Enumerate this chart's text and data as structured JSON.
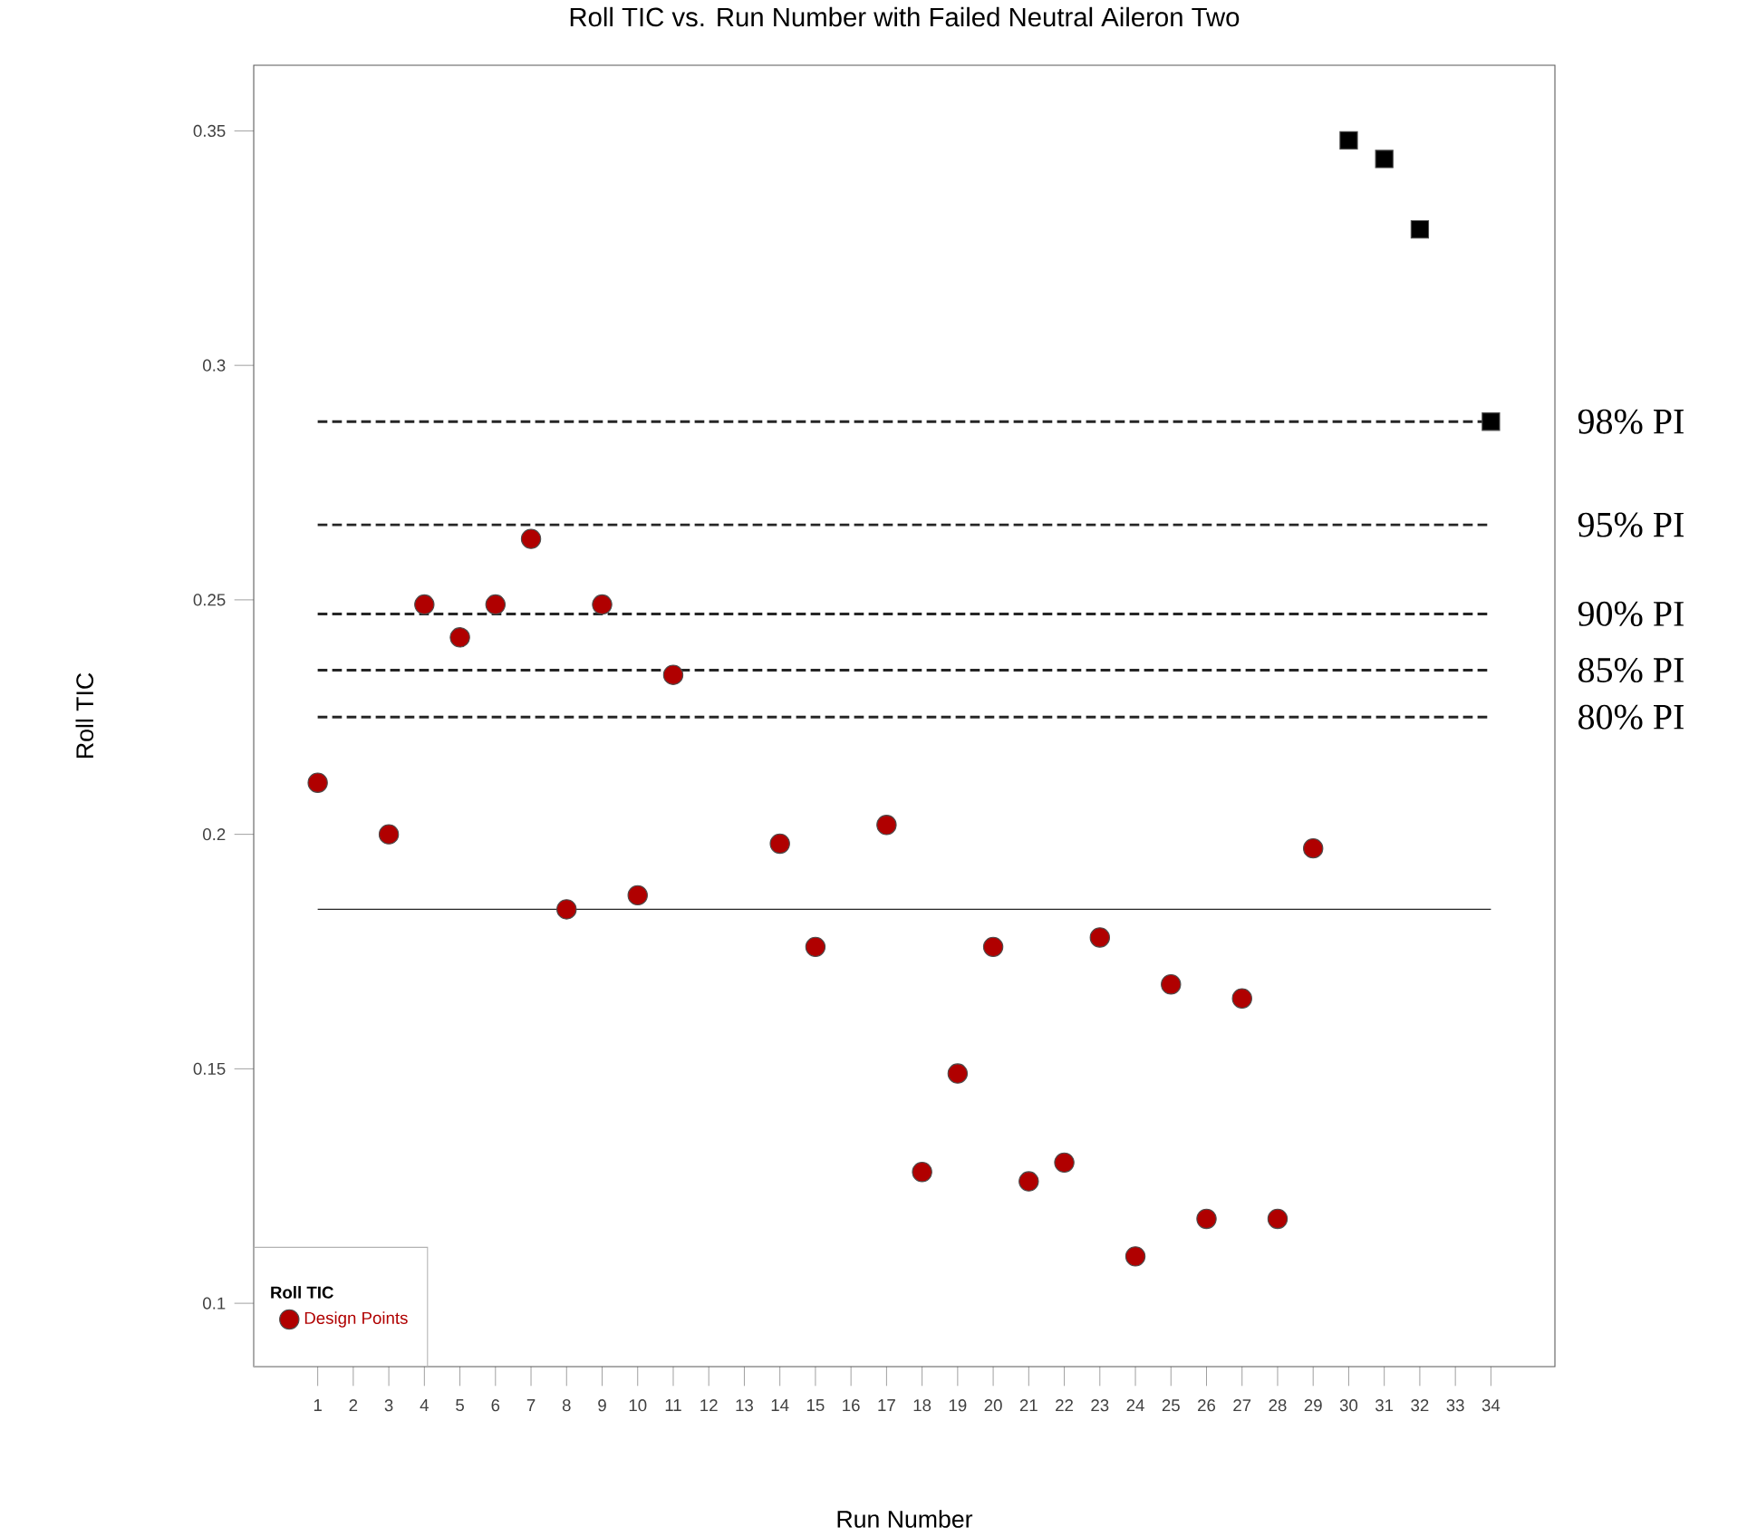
{
  "chart_data": {
    "type": "scatter",
    "title": "Roll TIC vs. Run Number with Failed Neutral Aileron Two",
    "xlabel": "Run Number",
    "ylabel": "Roll TIC",
    "legend_title": "Roll TIC",
    "xlim": [
      -0.8,
      35.8
    ],
    "ylim": [
      0.0865,
      0.364
    ],
    "xticks": [
      1,
      2,
      3,
      4,
      5,
      6,
      7,
      8,
      9,
      10,
      11,
      12,
      13,
      14,
      15,
      16,
      17,
      18,
      19,
      20,
      21,
      22,
      23,
      24,
      25,
      26,
      27,
      28,
      29,
      30,
      31,
      32,
      33,
      34
    ],
    "yticks": [
      0.1,
      0.15,
      0.2,
      0.25,
      0.3,
      0.35
    ],
    "grid": false,
    "legend": "bottom left",
    "series": [
      {
        "name": "Design Points",
        "marker": "circle",
        "color": "#b00000",
        "x": [
          1,
          3,
          4,
          5,
          6,
          7,
          8,
          9,
          10,
          11,
          14,
          15,
          17,
          18,
          19,
          20,
          21,
          22,
          23,
          24,
          25,
          26,
          27,
          28,
          29
        ],
        "values": [
          0.211,
          0.2,
          0.249,
          0.242,
          0.249,
          0.263,
          0.184,
          0.249,
          0.187,
          0.234,
          0.198,
          0.176,
          0.202,
          0.128,
          0.149,
          0.176,
          0.126,
          0.13,
          0.178,
          0.11,
          0.168,
          0.118,
          0.165,
          0.118,
          0.197
        ]
      },
      {
        "marker": "square",
        "color": "#000000",
        "x": [
          30,
          31,
          32,
          34
        ],
        "values": [
          0.348,
          0.344,
          0.329,
          0.288
        ]
      }
    ],
    "ref_lines": [
      {
        "axis": "y",
        "value": 0.288,
        "label": "98% PI",
        "line_style": "dashed"
      },
      {
        "axis": "y",
        "value": 0.266,
        "label": "95% PI",
        "line_style": "dashed"
      },
      {
        "axis": "y",
        "value": 0.247,
        "label": "90% PI",
        "line_style": "dashed"
      },
      {
        "axis": "y",
        "value": 0.235,
        "label": "85% PI",
        "line_style": "dashed"
      },
      {
        "axis": "y",
        "value": 0.225,
        "label": "80% PI",
        "line_style": "dashed"
      },
      {
        "axis": "y",
        "value": 0.184,
        "line_style": "solid"
      }
    ]
  }
}
